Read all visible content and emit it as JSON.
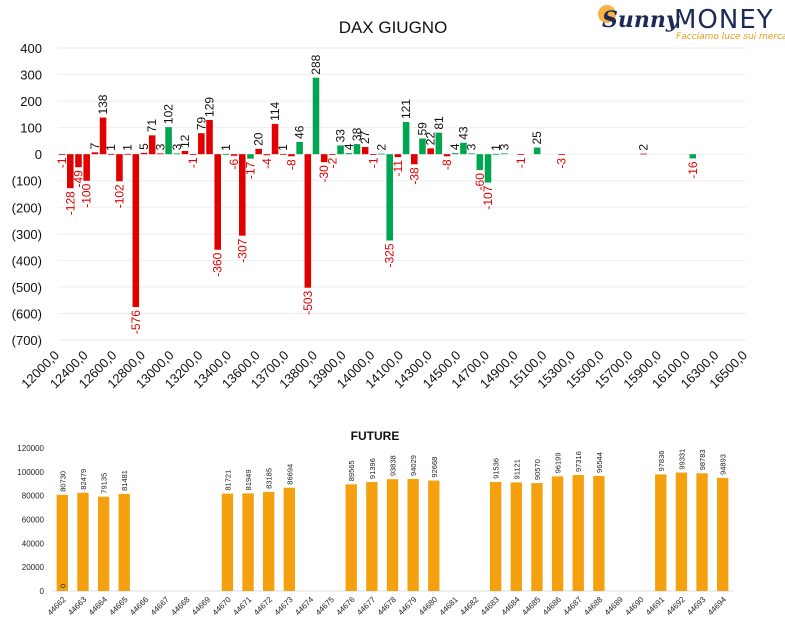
{
  "brand": {
    "name_script": "Sunny",
    "name_main": "MONEY",
    "tagline": "Facciamo luce sui mercati",
    "color_navy": "#1d2a55",
    "color_orange": "#e89a12",
    "icon": "sun-logo-icon"
  },
  "colors": {
    "positive": "#00a550",
    "negative": "#e00000",
    "future": "#f5a10f",
    "neg_label": "#e00000"
  },
  "chart_data": [
    {
      "type": "bar",
      "title": "DAX GIUGNO",
      "ylim": [
        -700,
        400
      ],
      "yticks": [
        400,
        300,
        200,
        100,
        0,
        -100,
        -200,
        -300,
        -400,
        -500,
        -600,
        -700
      ],
      "ytick_labels": [
        "400",
        "300",
        "200",
        "100",
        "0",
        "(100)",
        "(200)",
        "(300)",
        "(400)",
        "(500)",
        "(600)",
        "(700)"
      ],
      "xtick_labels": [
        "12000,0",
        "12400,0",
        "12600,0",
        "12800,0",
        "13000,0",
        "13200,0",
        "13400,0",
        "13600,0",
        "13700,0",
        "13800,0",
        "13900,0",
        "14000,0",
        "14100,0",
        "14300,0",
        "14500,0",
        "14700,0",
        "14900,0",
        "15100,0",
        "15300,0",
        "15500,0",
        "15700,0",
        "15900,0",
        "16100,0",
        "16300,0",
        "16500,0"
      ],
      "grid": true,
      "bars": [
        {
          "v": -1,
          "c": "r"
        },
        {
          "v": -128,
          "c": "r"
        },
        {
          "v": -49,
          "c": "r"
        },
        {
          "v": -100,
          "c": "r"
        },
        {
          "v": 7,
          "c": "r"
        },
        {
          "v": 138,
          "c": "r"
        },
        {
          "v": 1,
          "c": "r"
        },
        {
          "v": -102,
          "c": "r"
        },
        {
          "v": 1,
          "c": "r"
        },
        {
          "v": -576,
          "c": "r"
        },
        {
          "v": 5,
          "c": "r"
        },
        {
          "v": 71,
          "c": "r"
        },
        {
          "v": 3,
          "c": "r"
        },
        {
          "v": 102,
          "c": "g"
        },
        {
          "v": 3,
          "c": "g"
        },
        {
          "v": 12,
          "c": "r"
        },
        {
          "v": -1,
          "c": "r"
        },
        {
          "v": 79,
          "c": "r"
        },
        {
          "v": 129,
          "c": "r"
        },
        {
          "v": -360,
          "c": "r"
        },
        {
          "v": 1,
          "c": "g"
        },
        {
          "v": -6,
          "c": "r"
        },
        {
          "v": -307,
          "c": "r"
        },
        {
          "v": -17,
          "c": "g"
        },
        {
          "v": 20,
          "c": "r"
        },
        {
          "v": -4,
          "c": "r"
        },
        {
          "v": 114,
          "c": "r"
        },
        {
          "v": 1,
          "c": "r"
        },
        {
          "v": -8,
          "c": "r"
        },
        {
          "v": 46,
          "c": "g"
        },
        {
          "v": -503,
          "c": "r"
        },
        {
          "v": 288,
          "c": "g"
        },
        {
          "v": -30,
          "c": "r"
        },
        {
          "v": -2,
          "c": "r"
        },
        {
          "v": 33,
          "c": "g"
        },
        {
          "v": 4,
          "c": "g"
        },
        {
          "v": 38,
          "c": "g"
        },
        {
          "v": 27,
          "c": "r"
        },
        {
          "v": -1,
          "c": "r"
        },
        {
          "v": 2,
          "c": "g"
        },
        {
          "v": -325,
          "c": "g"
        },
        {
          "v": -11,
          "c": "r"
        },
        {
          "v": 121,
          "c": "g"
        },
        {
          "v": -38,
          "c": "r"
        },
        {
          "v": 59,
          "c": "g"
        },
        {
          "v": 22,
          "c": "r"
        },
        {
          "v": 81,
          "c": "g"
        },
        {
          "v": -8,
          "c": "r"
        },
        {
          "v": 4,
          "c": "g"
        },
        {
          "v": 43,
          "c": "g"
        },
        {
          "v": 3,
          "c": "g"
        },
        {
          "v": -60,
          "c": "g"
        },
        {
          "v": -107,
          "c": "g"
        },
        {
          "v": 1,
          "c": "g"
        },
        {
          "v": 3,
          "c": "g"
        },
        {
          "v": -1,
          "c": "r"
        },
        {
          "v": 25,
          "c": "g"
        },
        {
          "v": -3,
          "c": "r"
        },
        {
          "v": 2,
          "c": "r"
        },
        {
          "v": -16,
          "c": "g"
        }
      ],
      "bar_slots": [
        0,
        1,
        2,
        3,
        4,
        5,
        6,
        7,
        8,
        9,
        10,
        11,
        12,
        13,
        14,
        15,
        16,
        17,
        18,
        19,
        20,
        21,
        22,
        23,
        24,
        25,
        26,
        27,
        28,
        29,
        30,
        31,
        32,
        33,
        34,
        35,
        36,
        37,
        38,
        39,
        40,
        41,
        42,
        43,
        44,
        45,
        46,
        47,
        48,
        49,
        50,
        51,
        52,
        53,
        54,
        56,
        58,
        61,
        71,
        77
      ]
    },
    {
      "type": "bar",
      "title": "FUTURE",
      "ylim": [
        0,
        120000
      ],
      "yticks": [
        0,
        20000,
        40000,
        60000,
        80000,
        100000,
        120000
      ],
      "ytick_labels": [
        "0",
        "20000",
        "40000",
        "60000",
        "80000",
        "100000",
        "120000"
      ],
      "categories": [
        "44662",
        "44663",
        "44664",
        "44665",
        "44666",
        "44667",
        "44668",
        "44669",
        "44670",
        "44671",
        "44672",
        "44673",
        "44674",
        "44675",
        "44676",
        "44677",
        "44678",
        "44679",
        "44680",
        "44681",
        "44682",
        "44683",
        "44684",
        "44685",
        "44686",
        "44687",
        "44688",
        "44689",
        "44690",
        "44691",
        "44692",
        "44693",
        "44694"
      ],
      "values": [
        80730,
        82479,
        79135,
        81481,
        null,
        null,
        null,
        null,
        81721,
        81949,
        83185,
        86694,
        null,
        null,
        89565,
        91396,
        93838,
        94029,
        92668,
        null,
        null,
        91536,
        91121,
        90570,
        96199,
        97316,
        96544,
        null,
        null,
        97836,
        99331,
        98783,
        94893
      ],
      "extra_label": "0",
      "grid": false
    }
  ]
}
